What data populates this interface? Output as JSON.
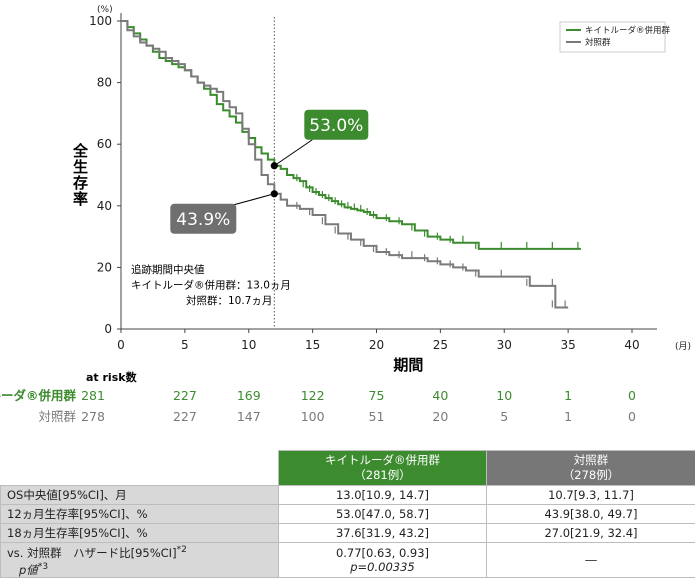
{
  "chart_data": {
    "type": "line",
    "y_unit": "(%)",
    "x_unit": "(月)",
    "xlabel": "期間",
    "ylabel": "全生存率",
    "xlim": [
      0,
      40
    ],
    "ylim": [
      0,
      100
    ],
    "x_ticks": [
      "0",
      "5",
      "10",
      "15",
      "20",
      "25",
      "30",
      "35",
      "40"
    ],
    "y_ticks": [
      "0",
      "20",
      "40",
      "60",
      "80",
      "100"
    ],
    "reference_line_x": 12,
    "legend": [
      "キイトルーダ®併用群",
      "対照群"
    ],
    "series": [
      {
        "name": "キイトルーダ®併用群",
        "color": "#3c8b2f",
        "points": [
          [
            0,
            100
          ],
          [
            0.5,
            98
          ],
          [
            1,
            96
          ],
          [
            1.5,
            94
          ],
          [
            2,
            92
          ],
          [
            2.5,
            90
          ],
          [
            3,
            88
          ],
          [
            3.5,
            87
          ],
          [
            4,
            86
          ],
          [
            4.5,
            85
          ],
          [
            5,
            84
          ],
          [
            5.5,
            82
          ],
          [
            6,
            80
          ],
          [
            6.5,
            78
          ],
          [
            7,
            76
          ],
          [
            7.5,
            73
          ],
          [
            8,
            71
          ],
          [
            8.5,
            69
          ],
          [
            9,
            67
          ],
          [
            9.5,
            64
          ],
          [
            10,
            62
          ],
          [
            10.5,
            59
          ],
          [
            11,
            57
          ],
          [
            11.5,
            55
          ],
          [
            12,
            53
          ],
          [
            12.5,
            52
          ],
          [
            13,
            50
          ],
          [
            13.5,
            49
          ],
          [
            14,
            48
          ],
          [
            14.5,
            46
          ],
          [
            15,
            44.5
          ],
          [
            15.5,
            43.5
          ],
          [
            16,
            42.5
          ],
          [
            16.5,
            41.5
          ],
          [
            17,
            40.5
          ],
          [
            17.5,
            39.5
          ],
          [
            18,
            39
          ],
          [
            18.5,
            38.5
          ],
          [
            19,
            38
          ],
          [
            19.5,
            37
          ],
          [
            20,
            36
          ],
          [
            21,
            35
          ],
          [
            22,
            34
          ],
          [
            23,
            32
          ],
          [
            24,
            30
          ],
          [
            25,
            29
          ],
          [
            26,
            28
          ],
          [
            27,
            28
          ],
          [
            28,
            26
          ],
          [
            30,
            26
          ],
          [
            32,
            26
          ],
          [
            34,
            26
          ],
          [
            36,
            26
          ]
        ]
      },
      {
        "name": "対照群",
        "color": "#7a7a7a",
        "points": [
          [
            0,
            100
          ],
          [
            0.5,
            97
          ],
          [
            1,
            95
          ],
          [
            1.5,
            93
          ],
          [
            2,
            92
          ],
          [
            2.5,
            91
          ],
          [
            3,
            90
          ],
          [
            3.5,
            88
          ],
          [
            4,
            87
          ],
          [
            4.5,
            86
          ],
          [
            5,
            84
          ],
          [
            5.5,
            82
          ],
          [
            6,
            80
          ],
          [
            6.5,
            79
          ],
          [
            7,
            78
          ],
          [
            7.5,
            77
          ],
          [
            8,
            74
          ],
          [
            8.5,
            72
          ],
          [
            9,
            70
          ],
          [
            9.5,
            65
          ],
          [
            10,
            60
          ],
          [
            10.5,
            55
          ],
          [
            11,
            50
          ],
          [
            11.5,
            47
          ],
          [
            12,
            43.9
          ],
          [
            12.5,
            42
          ],
          [
            13,
            40
          ],
          [
            14,
            39
          ],
          [
            15,
            37
          ],
          [
            16,
            34
          ],
          [
            17,
            31
          ],
          [
            18,
            29
          ],
          [
            19,
            27
          ],
          [
            20,
            25
          ],
          [
            21,
            24
          ],
          [
            22,
            23
          ],
          [
            23,
            23
          ],
          [
            24,
            22
          ],
          [
            25,
            21
          ],
          [
            26,
            20
          ],
          [
            27,
            19
          ],
          [
            28,
            17
          ],
          [
            30,
            17
          ],
          [
            32,
            14
          ],
          [
            34,
            14
          ],
          [
            34,
            7
          ],
          [
            35,
            7
          ]
        ]
      }
    ],
    "callouts": [
      {
        "label": "53.0%",
        "x": 12,
        "y": 53.0
      },
      {
        "label": "43.9%",
        "x": 12,
        "y": 43.9
      }
    ],
    "median_followup": [
      "追跡期間中央値",
      "キイトルーダ®併用群：13.0ヵ月",
      "対照群：10.7ヵ月"
    ]
  },
  "at_risk": {
    "title": "at risk数",
    "x": [
      0,
      5,
      10,
      15,
      20,
      25,
      30,
      35,
      40
    ],
    "rows": [
      {
        "label": "キイトルーダ®併用群",
        "values": [
          "281",
          "227",
          "169",
          "122",
          "75",
          "40",
          "10",
          "1",
          "0"
        ]
      },
      {
        "label": "対照群",
        "values": [
          "278",
          "227",
          "147",
          "100",
          "51",
          "20",
          "5",
          "1",
          "0"
        ]
      }
    ]
  },
  "table": {
    "col_pembro": "キイトルーダ®併用群",
    "col_pembro_n": "（281例）",
    "col_control": "対照群",
    "col_control_n": "（278例）",
    "rows": [
      {
        "label": "OS中央値[95%CI]、月",
        "pembro": "13.0[10.9, 14.7]",
        "control": "10.7[9.3, 11.7]"
      },
      {
        "label": "12ヵ月生存率[95%CI]、%",
        "pembro": "53.0[47.0, 58.7]",
        "control": "43.9[38.0, 49.7]"
      },
      {
        "label": "18ヵ月生存率[95%CI]、%",
        "pembro": "37.6[31.9, 43.2]",
        "control": "27.0[21.9, 32.4]"
      }
    ],
    "vs_label": "vs. 対照群　ハザード比[95%CI]",
    "vs_note": "*2",
    "p_label": "p値",
    "p_note": "*3",
    "hr_value": "0.77[0.63, 0.93]",
    "p_value": "p=0.00335",
    "control_dash": "―"
  }
}
